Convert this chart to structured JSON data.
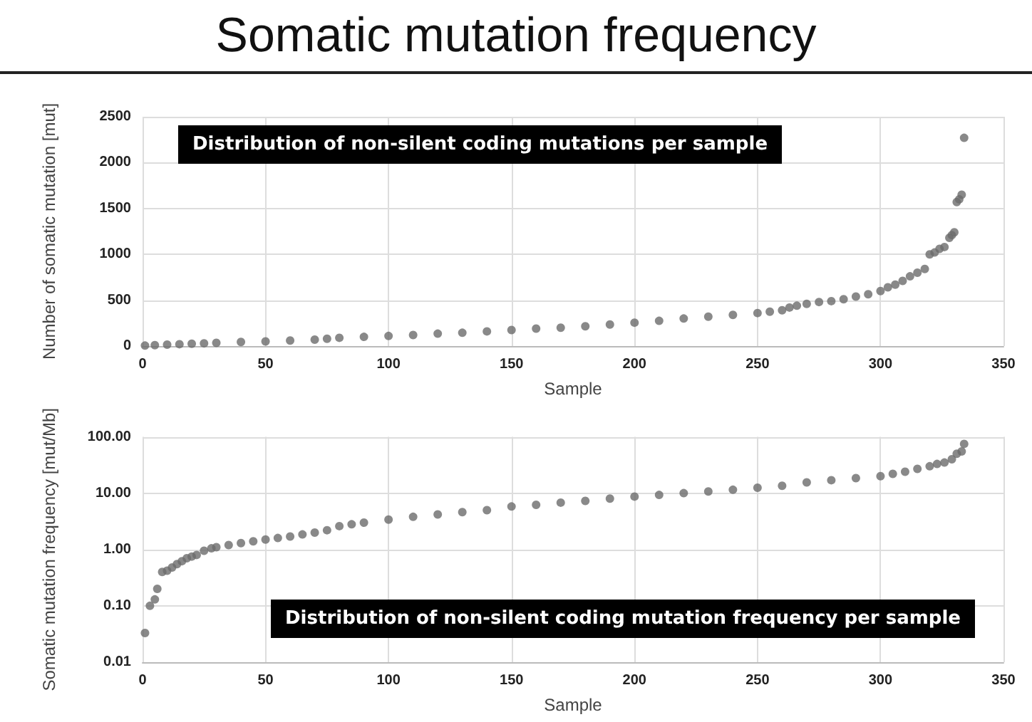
{
  "chart_data": [
    {
      "type": "scatter",
      "title": "Somatic mutation frequency",
      "xlabel": "Sample",
      "ylabel": "Number of somatic mutation [mut]",
      "annotations": [
        "Distribution of non-silent coding mutations per sample"
      ],
      "marker": "circle",
      "grid": true,
      "xlim": [
        0,
        350
      ],
      "xticks": [
        0,
        50,
        100,
        150,
        200,
        250,
        300,
        350
      ],
      "ylim": [
        0,
        2500
      ],
      "yticks": [
        0,
        500,
        1000,
        1500,
        2000,
        2500
      ],
      "series": [
        {
          "color": "#6b6b6b",
          "x": [
            1,
            5,
            10,
            15,
            20,
            25,
            30,
            40,
            50,
            60,
            70,
            75,
            80,
            90,
            100,
            110,
            120,
            130,
            140,
            150,
            160,
            170,
            180,
            190,
            200,
            210,
            220,
            230,
            240,
            250,
            255,
            260,
            263,
            266,
            270,
            275,
            280,
            285,
            290,
            295,
            300,
            303,
            306,
            309,
            312,
            315,
            318,
            320,
            322,
            324,
            326,
            328,
            329,
            330,
            331,
            332,
            333,
            334
          ],
          "values": [
            5,
            10,
            15,
            20,
            25,
            30,
            35,
            45,
            50,
            60,
            70,
            80,
            90,
            100,
            110,
            120,
            135,
            145,
            160,
            175,
            190,
            200,
            215,
            235,
            255,
            275,
            300,
            320,
            340,
            360,
            375,
            390,
            420,
            440,
            460,
            480,
            490,
            510,
            540,
            565,
            600,
            640,
            670,
            710,
            760,
            800,
            840,
            1000,
            1020,
            1060,
            1080,
            1180,
            1210,
            1240,
            1570,
            1600,
            1650,
            2270
          ]
        }
      ]
    },
    {
      "type": "scatter",
      "xlabel": "Sample",
      "ylabel": "Somatic mutation frequency [mut/Mb]",
      "annotations": [
        "Distribution of non-silent coding mutation frequency per sample"
      ],
      "marker": "circle",
      "grid": true,
      "log": "y",
      "xlim": [
        0,
        350
      ],
      "xticks": [
        0,
        50,
        100,
        150,
        200,
        250,
        300,
        350
      ],
      "ylim": [
        0.01,
        100
      ],
      "yticks": [
        {
          "value": 0.01,
          "label": "0.01"
        },
        {
          "value": 0.1,
          "label": "0.10"
        },
        {
          "value": 1,
          "label": "1.00"
        },
        {
          "value": 10,
          "label": "10.00"
        },
        {
          "value": 100,
          "label": "100.00"
        }
      ],
      "series": [
        {
          "color": "#6b6b6b",
          "x": [
            1,
            3,
            5,
            6,
            8,
            10,
            12,
            14,
            16,
            18,
            20,
            22,
            25,
            28,
            30,
            35,
            40,
            45,
            50,
            55,
            60,
            65,
            70,
            75,
            80,
            85,
            90,
            100,
            110,
            120,
            130,
            140,
            150,
            160,
            170,
            180,
            190,
            200,
            210,
            220,
            230,
            240,
            250,
            260,
            270,
            280,
            290,
            300,
            305,
            310,
            315,
            320,
            323,
            326,
            329,
            331,
            333,
            334
          ],
          "values": [
            0.033,
            0.1,
            0.13,
            0.2,
            0.4,
            0.42,
            0.48,
            0.55,
            0.62,
            0.7,
            0.75,
            0.8,
            0.95,
            1.05,
            1.1,
            1.2,
            1.3,
            1.4,
            1.5,
            1.6,
            1.7,
            1.85,
            2.0,
            2.2,
            2.6,
            2.8,
            3.0,
            3.4,
            3.8,
            4.2,
            4.6,
            5.0,
            5.8,
            6.2,
            6.8,
            7.3,
            8.0,
            8.7,
            9.3,
            10.0,
            10.7,
            11.5,
            12.5,
            13.5,
            15.5,
            17,
            18.5,
            20,
            22,
            24,
            27,
            30,
            33,
            35,
            40,
            50,
            55,
            75
          ]
        }
      ]
    }
  ]
}
